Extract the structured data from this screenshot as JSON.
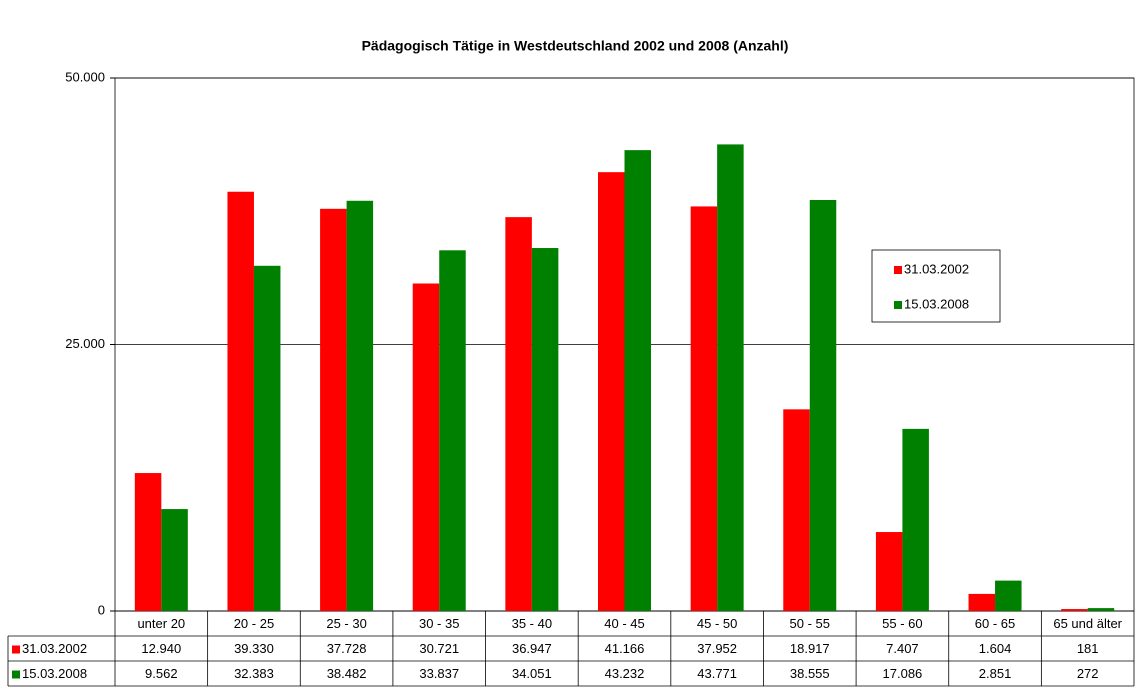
{
  "chart_data": {
    "type": "bar",
    "title": "Pädagogisch Tätige in Westdeutschland 2002 und 2008 (Anzahl)",
    "categories": [
      "unter 20",
      "20 - 25",
      "25 - 30",
      "30 - 35",
      "35 - 40",
      "40 - 45",
      "45 - 50",
      "50 - 55",
      "55 - 60",
      "60 - 65",
      "65 und älter"
    ],
    "series": [
      {
        "name": "31.03.2002",
        "color": "#ff0000",
        "values": [
          12940,
          39330,
          37728,
          30721,
          36947,
          41166,
          37952,
          18917,
          7407,
          1604,
          181
        ],
        "value_labels": [
          "12.940",
          "39.330",
          "37.728",
          "30.721",
          "36.947",
          "41.166",
          "37.952",
          "18.917",
          "7.407",
          "1.604",
          "181"
        ]
      },
      {
        "name": "15.03.2008",
        "color": "#008000",
        "values": [
          9562,
          32383,
          38482,
          33837,
          34051,
          43232,
          43771,
          38555,
          17086,
          2851,
          272
        ],
        "value_labels": [
          "9.562",
          "32.383",
          "38.482",
          "33.837",
          "34.051",
          "43.232",
          "43.771",
          "38.555",
          "17.086",
          "2.851",
          "272"
        ]
      }
    ],
    "ylim": [
      0,
      50000
    ],
    "yticks": [
      0,
      {
        "value": 25000,
        "label": "25.000"
      },
      {
        "value": 50000,
        "label": "50.000"
      }
    ],
    "grid": true,
    "legend": "right"
  }
}
